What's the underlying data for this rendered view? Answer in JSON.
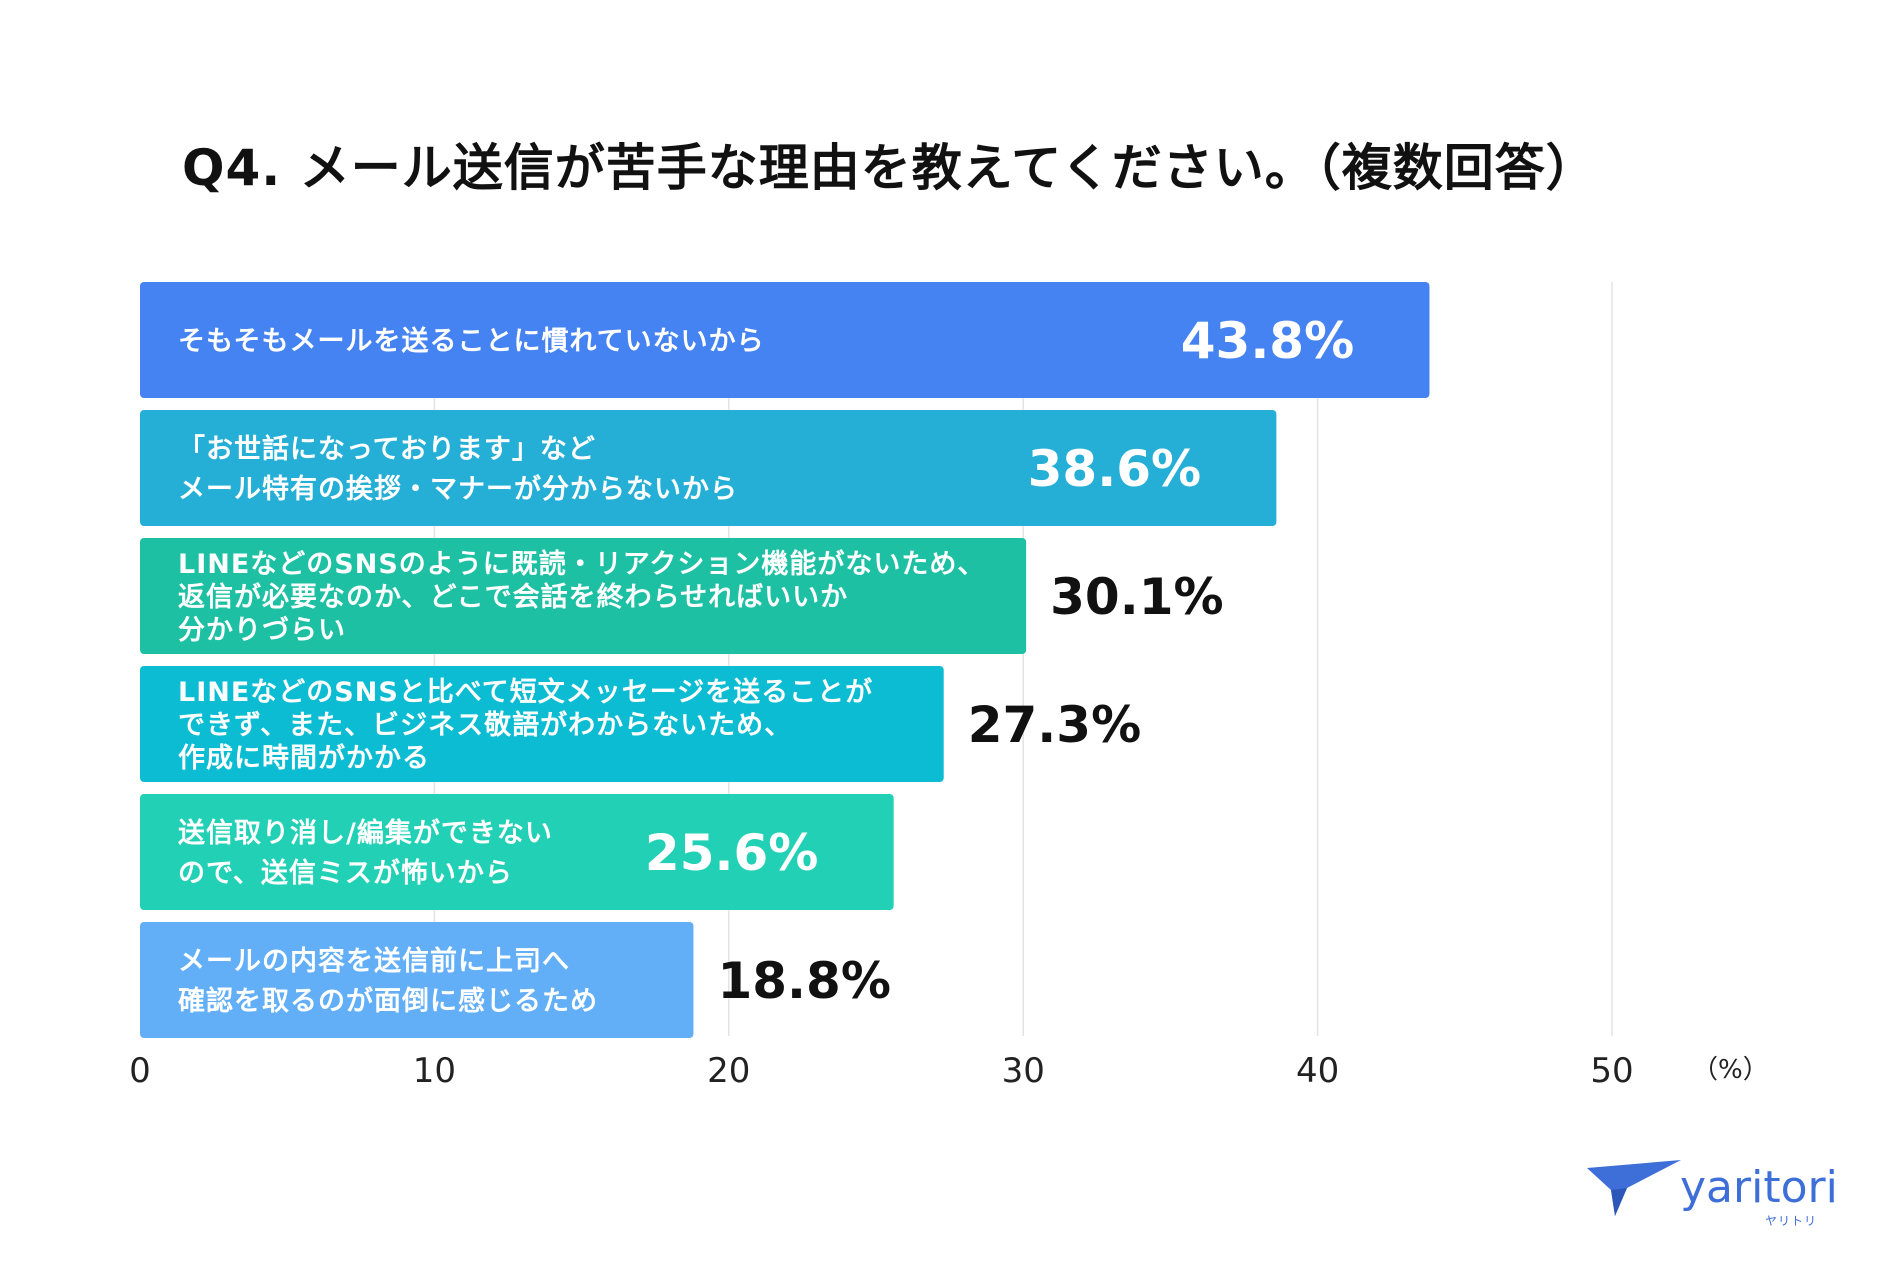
{
  "title": "Q4. メール送信が苦手な理由を教えてください。（複数回答）",
  "chart_data": {
    "type": "bar",
    "orientation": "horizontal",
    "title": "Q4. メール送信が苦手な理由を教えてください。（複数回答）",
    "unit": "（%）",
    "xlim": [
      0,
      50
    ],
    "ticks": [
      0,
      10,
      20,
      30,
      40,
      50
    ],
    "grid": true,
    "bars": [
      {
        "lines": [
          "そもそもメールを送ることに慣れていないから"
        ],
        "value": 43.8,
        "label": "43.8%",
        "color": "#4683f2",
        "label_inside": true
      },
      {
        "lines": [
          "「お世話になっております」など",
          "メール特有の挨拶・マナーが分からないから"
        ],
        "value": 38.6,
        "label": "38.6%",
        "color": "#25afd6",
        "label_inside": true
      },
      {
        "lines": [
          "LINEなどのSNSのように既読・リアクション機能がないため、",
          "返信が必要なのか、どこで会話を終わらせればいいか",
          "分かりづらい"
        ],
        "value": 30.1,
        "label": "30.1%",
        "color": "#1ec0a3",
        "label_inside": false
      },
      {
        "lines": [
          "LINEなどのSNSと比べて短文メッセージを送ることが",
          "できず、また、ビジネス敬語がわからないため、",
          "作成に時間がかかる"
        ],
        "value": 27.3,
        "label": "27.3%",
        "color": "#0bbcd3",
        "label_inside": false
      },
      {
        "lines": [
          "送信取り消し/編集ができない",
          "ので、送信ミスが怖いから"
        ],
        "value": 25.6,
        "label": "25.6%",
        "color": "#22d1b5",
        "label_inside": true
      },
      {
        "lines": [
          "メールの内容を送信前に上司へ",
          "確認を取るのが面倒に感じるため"
        ],
        "value": 18.8,
        "label": "18.8%",
        "color": "#62aef7",
        "label_inside": false
      }
    ]
  },
  "logo": {
    "name": "yaritori",
    "sub": "ヤリトリ",
    "color": "#3e6fd8"
  }
}
